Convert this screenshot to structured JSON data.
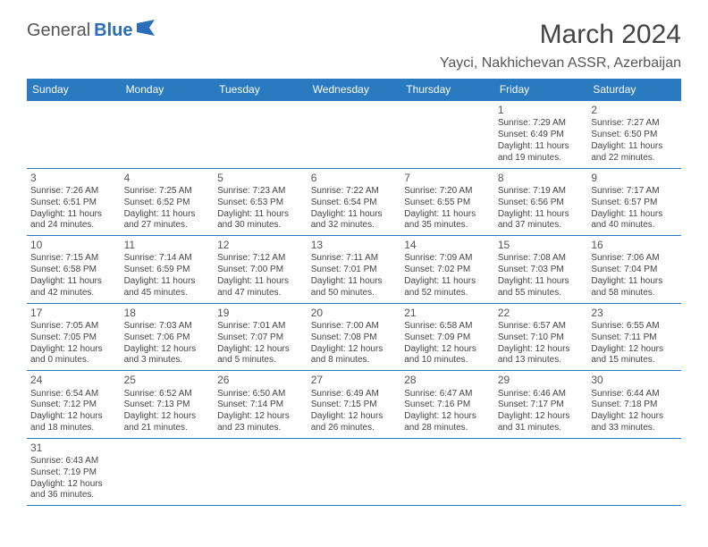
{
  "logo": {
    "text1": "General",
    "text2": "Blue"
  },
  "title": "March 2024",
  "location": "Yayci, Nakhichevan ASSR, Azerbaijan",
  "colors": {
    "header_bg": "#2a7ac0",
    "header_fg": "#ffffff",
    "border": "#2a7ac0",
    "logo_accent": "#2a6db8"
  },
  "dayNames": [
    "Sunday",
    "Monday",
    "Tuesday",
    "Wednesday",
    "Thursday",
    "Friday",
    "Saturday"
  ],
  "startOffset": 5,
  "days": [
    {
      "n": 1,
      "sunrise": "7:29 AM",
      "sunset": "6:49 PM",
      "day_h": 11,
      "day_m": 19
    },
    {
      "n": 2,
      "sunrise": "7:27 AM",
      "sunset": "6:50 PM",
      "day_h": 11,
      "day_m": 22
    },
    {
      "n": 3,
      "sunrise": "7:26 AM",
      "sunset": "6:51 PM",
      "day_h": 11,
      "day_m": 24
    },
    {
      "n": 4,
      "sunrise": "7:25 AM",
      "sunset": "6:52 PM",
      "day_h": 11,
      "day_m": 27
    },
    {
      "n": 5,
      "sunrise": "7:23 AM",
      "sunset": "6:53 PM",
      "day_h": 11,
      "day_m": 30
    },
    {
      "n": 6,
      "sunrise": "7:22 AM",
      "sunset": "6:54 PM",
      "day_h": 11,
      "day_m": 32
    },
    {
      "n": 7,
      "sunrise": "7:20 AM",
      "sunset": "6:55 PM",
      "day_h": 11,
      "day_m": 35
    },
    {
      "n": 8,
      "sunrise": "7:19 AM",
      "sunset": "6:56 PM",
      "day_h": 11,
      "day_m": 37
    },
    {
      "n": 9,
      "sunrise": "7:17 AM",
      "sunset": "6:57 PM",
      "day_h": 11,
      "day_m": 40
    },
    {
      "n": 10,
      "sunrise": "7:15 AM",
      "sunset": "6:58 PM",
      "day_h": 11,
      "day_m": 42
    },
    {
      "n": 11,
      "sunrise": "7:14 AM",
      "sunset": "6:59 PM",
      "day_h": 11,
      "day_m": 45
    },
    {
      "n": 12,
      "sunrise": "7:12 AM",
      "sunset": "7:00 PM",
      "day_h": 11,
      "day_m": 47
    },
    {
      "n": 13,
      "sunrise": "7:11 AM",
      "sunset": "7:01 PM",
      "day_h": 11,
      "day_m": 50
    },
    {
      "n": 14,
      "sunrise": "7:09 AM",
      "sunset": "7:02 PM",
      "day_h": 11,
      "day_m": 52
    },
    {
      "n": 15,
      "sunrise": "7:08 AM",
      "sunset": "7:03 PM",
      "day_h": 11,
      "day_m": 55
    },
    {
      "n": 16,
      "sunrise": "7:06 AM",
      "sunset": "7:04 PM",
      "day_h": 11,
      "day_m": 58
    },
    {
      "n": 17,
      "sunrise": "7:05 AM",
      "sunset": "7:05 PM",
      "day_h": 12,
      "day_m": 0
    },
    {
      "n": 18,
      "sunrise": "7:03 AM",
      "sunset": "7:06 PM",
      "day_h": 12,
      "day_m": 3
    },
    {
      "n": 19,
      "sunrise": "7:01 AM",
      "sunset": "7:07 PM",
      "day_h": 12,
      "day_m": 5
    },
    {
      "n": 20,
      "sunrise": "7:00 AM",
      "sunset": "7:08 PM",
      "day_h": 12,
      "day_m": 8
    },
    {
      "n": 21,
      "sunrise": "6:58 AM",
      "sunset": "7:09 PM",
      "day_h": 12,
      "day_m": 10
    },
    {
      "n": 22,
      "sunrise": "6:57 AM",
      "sunset": "7:10 PM",
      "day_h": 12,
      "day_m": 13
    },
    {
      "n": 23,
      "sunrise": "6:55 AM",
      "sunset": "7:11 PM",
      "day_h": 12,
      "day_m": 15
    },
    {
      "n": 24,
      "sunrise": "6:54 AM",
      "sunset": "7:12 PM",
      "day_h": 12,
      "day_m": 18
    },
    {
      "n": 25,
      "sunrise": "6:52 AM",
      "sunset": "7:13 PM",
      "day_h": 12,
      "day_m": 21
    },
    {
      "n": 26,
      "sunrise": "6:50 AM",
      "sunset": "7:14 PM",
      "day_h": 12,
      "day_m": 23
    },
    {
      "n": 27,
      "sunrise": "6:49 AM",
      "sunset": "7:15 PM",
      "day_h": 12,
      "day_m": 26
    },
    {
      "n": 28,
      "sunrise": "6:47 AM",
      "sunset": "7:16 PM",
      "day_h": 12,
      "day_m": 28
    },
    {
      "n": 29,
      "sunrise": "6:46 AM",
      "sunset": "7:17 PM",
      "day_h": 12,
      "day_m": 31
    },
    {
      "n": 30,
      "sunrise": "6:44 AM",
      "sunset": "7:18 PM",
      "day_h": 12,
      "day_m": 33
    },
    {
      "n": 31,
      "sunrise": "6:43 AM",
      "sunset": "7:19 PM",
      "day_h": 12,
      "day_m": 36
    }
  ]
}
